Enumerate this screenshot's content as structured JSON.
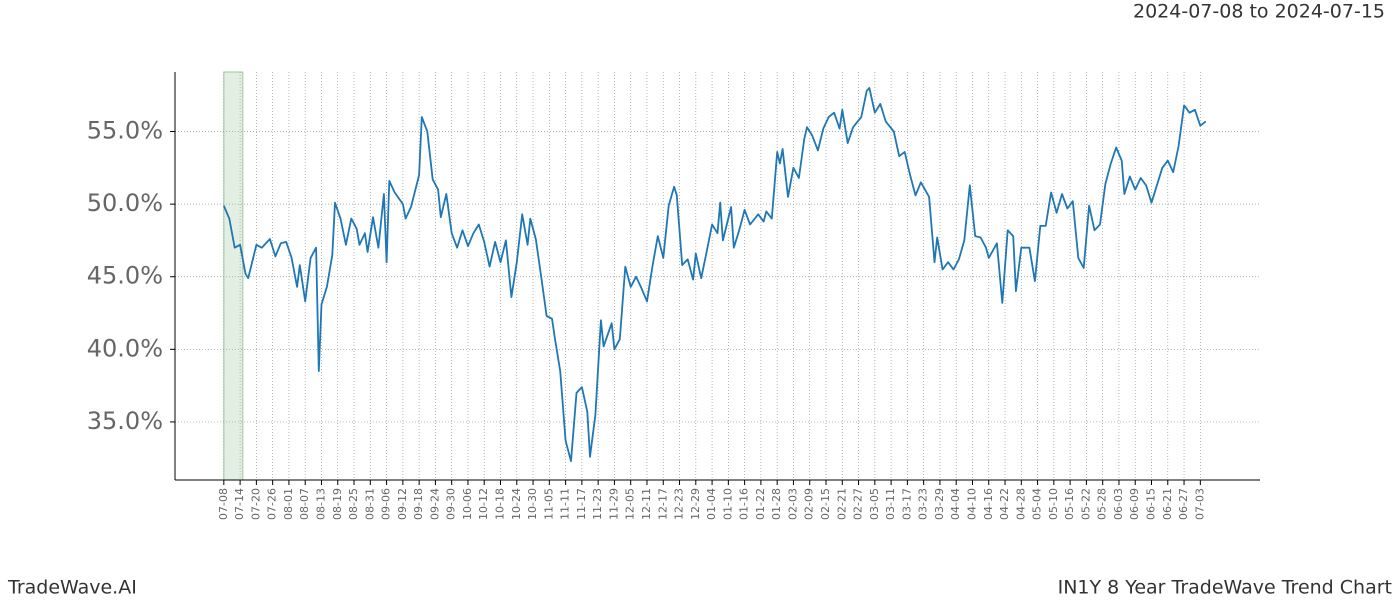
{
  "chart_data": {
    "type": "line",
    "date_range": "2024-07-08 to 2024-07-15",
    "brand": "TradeWave.AI",
    "title": "IN1Y 8 Year TradeWave Trend Chart",
    "span": [
      "07-08",
      "07-15"
    ],
    "span_color": "#e3efe3",
    "grid": true,
    "xlim": [
      "06-20",
      "07-25"
    ],
    "ylim": [
      31.0,
      59.1
    ],
    "yticks": [
      {
        "value": 35,
        "label": "35.0%"
      },
      {
        "value": 40,
        "label": "40.0%"
      },
      {
        "value": 45,
        "label": "45.0%"
      },
      {
        "value": 50,
        "label": "50.0%"
      },
      {
        "value": 55,
        "label": "55.0%"
      }
    ],
    "xticks": [
      "07-08",
      "07-14",
      "07-20",
      "07-26",
      "08-01",
      "08-07",
      "08-13",
      "08-19",
      "08-25",
      "08-31",
      "09-06",
      "09-12",
      "09-18",
      "09-24",
      "09-30",
      "10-06",
      "10-12",
      "10-18",
      "10-24",
      "10-30",
      "11-05",
      "11-11",
      "11-17",
      "11-23",
      "11-29",
      "12-05",
      "12-11",
      "12-17",
      "12-23",
      "12-29",
      "01-04",
      "01-10",
      "01-16",
      "01-22",
      "01-28",
      "02-03",
      "02-09",
      "02-15",
      "02-21",
      "02-27",
      "03-05",
      "03-11",
      "03-17",
      "03-23",
      "03-29",
      "04-04",
      "04-10",
      "04-16",
      "04-22",
      "04-28",
      "05-04",
      "05-10",
      "05-16",
      "05-22",
      "05-28",
      "06-03",
      "06-09",
      "06-15",
      "06-21",
      "06-27",
      "07-03"
    ],
    "series": [
      {
        "color": "#1f77b4",
        "x": [
          "07-08",
          "07-10",
          "07-12",
          "07-14",
          "07-16",
          "07-17",
          "07-20",
          "07-22",
          "07-25",
          "07-27",
          "07-29",
          "07-31",
          "08-02",
          "08-04",
          "08-05",
          "08-07",
          "08-09",
          "08-11",
          "08-12",
          "08-13",
          "08-15",
          "08-17",
          "08-18",
          "08-20",
          "08-22",
          "08-24",
          "08-26",
          "08-27",
          "08-29",
          "08-30",
          "09-01",
          "09-03",
          "09-05",
          "09-06",
          "09-07",
          "09-09",
          "09-12",
          "09-13",
          "09-15",
          "09-18",
          "09-19",
          "09-21",
          "09-23",
          "09-25",
          "09-26",
          "09-28",
          "09-30",
          "10-02",
          "10-04",
          "10-06",
          "10-08",
          "10-10",
          "10-12",
          "10-14",
          "10-16",
          "10-18",
          "10-20",
          "10-22",
          "10-24",
          "10-26",
          "10-28",
          "10-29",
          "10-31",
          "11-02",
          "11-04",
          "11-06",
          "11-07",
          "11-09",
          "11-11",
          "11-13",
          "11-15",
          "11-17",
          "11-19",
          "11-20",
          "11-22",
          "11-24",
          "11-25",
          "11-28",
          "11-29",
          "12-01",
          "12-03",
          "12-05",
          "12-07",
          "12-09",
          "12-11",
          "12-13",
          "12-15",
          "12-17",
          "12-19",
          "12-21",
          "12-22",
          "12-24",
          "12-26",
          "12-28",
          "12-29",
          "12-31",
          "01-02",
          "01-04",
          "01-06",
          "01-07",
          "01-08",
          "01-11",
          "01-12",
          "01-14",
          "01-16",
          "01-18",
          "01-21",
          "01-23",
          "01-24",
          "01-26",
          "01-28",
          "01-29",
          "01-30",
          "02-01",
          "02-03",
          "02-05",
          "02-07",
          "02-08",
          "02-10",
          "02-12",
          "02-14",
          "02-16",
          "02-18",
          "02-20",
          "02-21",
          "02-23",
          "02-25",
          "02-28",
          "03-02",
          "03-03",
          "03-05",
          "03-07",
          "03-09",
          "03-12",
          "03-14",
          "03-16",
          "03-18",
          "03-20",
          "03-22",
          "03-25",
          "03-27",
          "03-28",
          "03-30",
          "04-01",
          "04-03",
          "04-05",
          "04-07",
          "04-09",
          "04-11",
          "04-13",
          "04-15",
          "04-16",
          "04-19",
          "04-21",
          "04-23",
          "04-25",
          "04-26",
          "04-28",
          "05-01",
          "05-03",
          "05-05",
          "05-07",
          "05-09",
          "05-11",
          "05-13",
          "05-15",
          "05-17",
          "05-19",
          "05-21",
          "05-23",
          "05-25",
          "05-27",
          "05-29",
          "05-31",
          "06-02",
          "06-04",
          "06-05",
          "06-07",
          "06-09",
          "06-11",
          "06-13",
          "06-15",
          "06-17",
          "06-19",
          "06-21",
          "06-23",
          "06-25",
          "06-27",
          "06-29",
          "07-01",
          "07-03",
          "07-05"
        ],
        "values": [
          49.9,
          49.0,
          47.0,
          47.2,
          45.2,
          44.9,
          47.2,
          47.0,
          47.6,
          46.4,
          47.3,
          47.4,
          46.3,
          44.3,
          45.8,
          43.3,
          46.3,
          47.0,
          38.5,
          43.1,
          44.3,
          46.5,
          50.1,
          49.0,
          47.2,
          49.0,
          48.3,
          47.2,
          48.0,
          46.7,
          49.1,
          47.0,
          50.7,
          46.0,
          51.6,
          50.8,
          50.0,
          49.0,
          49.8,
          52.0,
          56.0,
          55.0,
          51.7,
          51.0,
          49.1,
          50.7,
          48.0,
          47.0,
          48.2,
          47.1,
          48.0,
          48.6,
          47.4,
          45.7,
          47.4,
          46.0,
          47.5,
          43.6,
          46.0,
          49.3,
          47.2,
          49.0,
          47.6,
          45.0,
          42.3,
          42.1,
          40.8,
          38.5,
          33.7,
          32.3,
          37.0,
          37.4,
          35.7,
          32.6,
          35.5,
          42.0,
          40.2,
          41.8,
          40.0,
          40.7,
          45.7,
          44.3,
          45.0,
          44.2,
          43.3,
          45.7,
          47.8,
          46.3,
          49.9,
          51.2,
          50.6,
          45.8,
          46.2,
          44.8,
          46.6,
          44.9,
          46.7,
          48.6,
          48.0,
          50.1,
          47.5,
          49.8,
          47.0,
          48.2,
          49.6,
          48.6,
          49.3,
          48.8,
          49.5,
          49.0,
          53.6,
          52.8,
          53.8,
          50.5,
          52.5,
          51.8,
          54.5,
          55.3,
          54.7,
          53.7,
          55.2,
          56.0,
          56.3,
          55.2,
          56.5,
          54.2,
          55.3,
          56.0,
          57.8,
          58.0,
          56.3,
          56.9,
          55.7,
          55.0,
          53.3,
          53.6,
          52.0,
          50.6,
          51.5,
          50.5,
          46.0,
          47.7,
          45.5,
          46.0,
          45.5,
          46.2,
          47.5,
          51.3,
          47.8,
          47.7,
          47.0,
          46.3,
          47.3,
          43.2,
          48.2,
          47.8,
          44.0,
          47.0,
          47.0,
          44.7,
          48.5,
          48.5,
          50.8,
          49.4,
          50.7,
          49.7,
          50.2,
          46.3,
          45.6,
          49.9,
          48.2,
          48.6,
          51.4,
          52.8,
          53.9,
          53.0,
          50.7,
          51.9,
          51.0,
          51.8,
          51.3,
          50.1,
          51.3,
          52.5,
          53.0,
          52.2,
          54.0,
          56.8,
          56.3,
          56.5,
          55.4,
          55.7
        ]
      }
    ]
  }
}
